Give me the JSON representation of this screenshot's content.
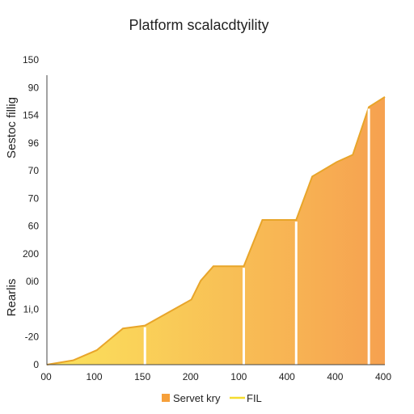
{
  "chart_data": {
    "type": "area",
    "title": "Platform scalacdtyility",
    "ylabel_top": "Sestoc fillig",
    "ylabel_bottom": "Rearlis",
    "xlabel": "",
    "x_tick_labels": [
      "00",
      "100",
      "150",
      "200",
      "100",
      "400",
      "400",
      "400"
    ],
    "y_tick_labels": [
      "150",
      "90",
      "154",
      "96",
      "70",
      "70",
      "60",
      "200",
      "0i0",
      "1i,0",
      "-20",
      "0"
    ],
    "series": [
      {
        "name": "Servet kry",
        "color": "#f6a03a",
        "points": [
          [
            0,
            0
          ],
          [
            31,
            3
          ],
          [
            59,
            10
          ],
          [
            90,
            25
          ],
          [
            116,
            27
          ],
          [
            171,
            45
          ],
          [
            182,
            58
          ],
          [
            197,
            68
          ],
          [
            233,
            68
          ],
          [
            255,
            100
          ],
          [
            295,
            100
          ],
          [
            314,
            130
          ],
          [
            343,
            140
          ],
          [
            362,
            145
          ],
          [
            381,
            178
          ],
          [
            400,
            185
          ]
        ]
      },
      {
        "name": "FIL",
        "color": "#f5dc2e"
      }
    ],
    "vertical_dividers_x": [
      116,
      233,
      295,
      381
    ],
    "gradient": {
      "start": "#fbe35c",
      "end": "#f6a150"
    },
    "ylim": [
      0,
      200
    ],
    "xlim": [
      0,
      400
    ],
    "grid": false,
    "legend_position": "bottom-center"
  }
}
